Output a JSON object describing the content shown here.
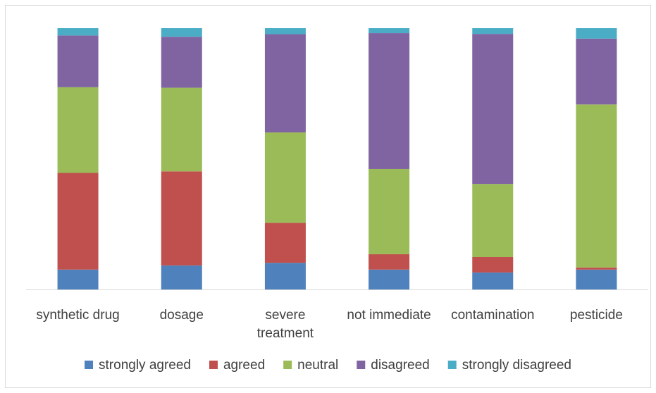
{
  "chart_data": {
    "type": "bar",
    "stacked": true,
    "normalized": true,
    "title": "",
    "xlabel": "",
    "ylabel": "",
    "ylim": [
      0,
      100
    ],
    "grid": false,
    "legend_position": "bottom",
    "categories": [
      [
        "synthetic drug"
      ],
      [
        "dosage"
      ],
      [
        "severe",
        "treatment"
      ],
      [
        "not immediate"
      ],
      [
        "contamination"
      ],
      [
        "pesticide"
      ]
    ],
    "series": [
      {
        "name": "strongly agreed",
        "color": "#4f81bd",
        "values": [
          7.6,
          9.2,
          10.2,
          7.6,
          6.5,
          7.6
        ]
      },
      {
        "name": "agreed",
        "color": "#c0504d",
        "values": [
          37.0,
          36.0,
          15.3,
          5.9,
          5.9,
          0.8
        ]
      },
      {
        "name": "neutral",
        "color": "#9bbb59",
        "values": [
          32.8,
          32.0,
          34.6,
          32.6,
          28.0,
          62.4
        ]
      },
      {
        "name": "disagreed",
        "color": "#8064a2",
        "values": [
          19.8,
          19.5,
          37.6,
          52.0,
          57.4,
          25.2
        ]
      },
      {
        "name": "strongly disagreed",
        "color": "#4bacc6",
        "values": [
          2.8,
          3.3,
          2.3,
          1.9,
          2.2,
          4.0
        ]
      }
    ]
  }
}
